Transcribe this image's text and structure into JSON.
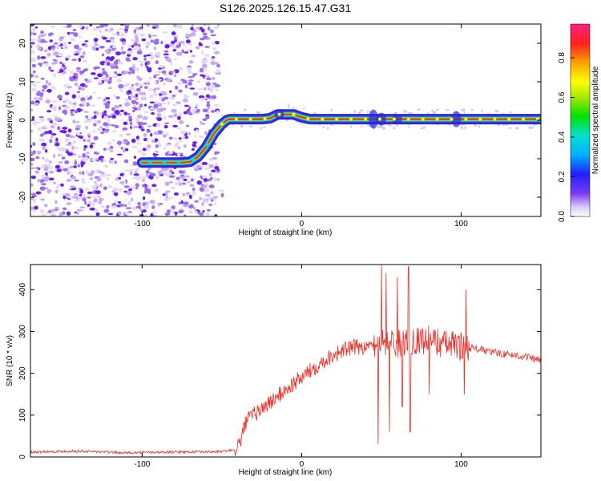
{
  "title": "S126.2025.126.15.47.G31",
  "colors": {
    "snr_line": "#e8312a",
    "trace_core": "#e8312a",
    "scatter": "#7a3cf0",
    "axis": "#000000"
  },
  "chart_data": [
    {
      "type": "heatmap",
      "xlabel": "Height of straight line (km)",
      "ylabel": "Frequency (Hz)",
      "xlim": [
        -170,
        150
      ],
      "ylim": [
        -25,
        25
      ],
      "xticks": [
        -100,
        0,
        100
      ],
      "xtick_labels": [
        "-100",
        "0",
        "100"
      ],
      "yticks": [
        -20,
        -10,
        0,
        10,
        20
      ],
      "ytick_labels": [
        "-20",
        "-10",
        "0",
        "10",
        "20"
      ],
      "noise_region_x": [
        -170,
        -52
      ],
      "trace_x": [
        -100,
        -75,
        -70,
        -65,
        -60,
        -55,
        -50,
        -47,
        -45,
        -40,
        -35,
        -30,
        -25,
        -20,
        -15,
        -10,
        -5,
        0,
        5,
        10,
        40,
        45,
        50,
        60,
        90,
        95,
        100,
        150
      ],
      "trace_y": [
        -11,
        -11,
        -10.8,
        -9.5,
        -7,
        -3.5,
        -1,
        0,
        0.3,
        0.3,
        0.3,
        0.3,
        0.3,
        0.5,
        1.5,
        1.5,
        1.5,
        0.8,
        0.3,
        0.3,
        0.3,
        0.3,
        0.3,
        0.3,
        0.3,
        0.3,
        0.3,
        0.3
      ],
      "colorbar": {
        "label": "Normalized spectral amplitude",
        "range": [
          0,
          0.97
        ],
        "ticks": [
          "0.0",
          "0.2",
          "0.4",
          "0.6",
          "0.8"
        ],
        "tick_values": [
          0,
          0.2,
          0.4,
          0.6,
          0.8
        ]
      }
    },
    {
      "type": "line",
      "xlabel": "Height of straight line (km)",
      "ylabel": "SNR (10 * v/v)",
      "xlim": [
        -170,
        150
      ],
      "ylim": [
        0,
        460
      ],
      "xticks": [
        -100,
        0,
        100
      ],
      "xtick_labels": [
        "-100",
        "0",
        "100"
      ],
      "yticks": [
        0,
        100,
        200,
        300,
        400
      ],
      "ytick_labels": [
        "0",
        "100",
        "200",
        "300",
        "400"
      ],
      "series": [
        {
          "x": [
            -170,
            -140,
            -110,
            -80,
            -60,
            -50,
            -42,
            -38,
            -35,
            -30,
            -20,
            -10,
            0,
            10,
            20,
            30,
            40,
            45,
            50,
            60,
            70,
            80,
            90,
            100,
            110,
            120,
            130,
            140,
            150
          ],
          "y": [
            12,
            14,
            10,
            12,
            12,
            13,
            16,
            40,
            85,
            100,
            130,
            160,
            190,
            220,
            245,
            260,
            265,
            270,
            280,
            270,
            280,
            280,
            270,
            265,
            258,
            250,
            245,
            240,
            230
          ]
        }
      ],
      "spikes_high": [
        [
          50,
          460
        ],
        [
          53,
          440
        ],
        [
          60,
          430
        ],
        [
          67,
          455
        ],
        [
          103,
          400
        ]
      ],
      "spikes_low": [
        [
          48,
          30
        ],
        [
          55,
          60
        ],
        [
          63,
          120
        ],
        [
          68,
          60
        ],
        [
          80,
          150
        ],
        [
          102,
          150
        ]
      ]
    }
  ]
}
